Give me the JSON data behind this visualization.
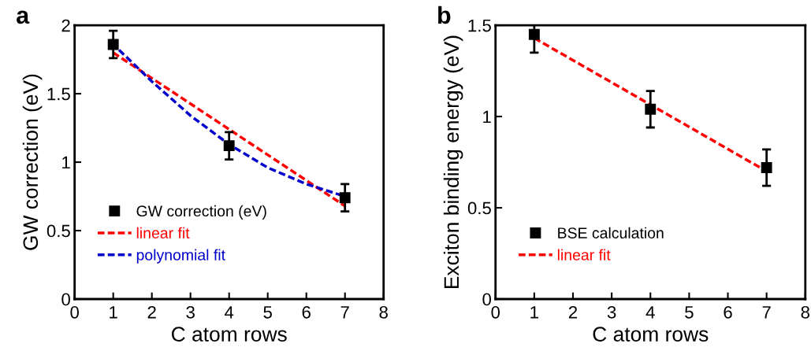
{
  "chart_data": [
    {
      "type": "scatter",
      "annotations": [
        "a"
      ],
      "xlabel": "C atom rows",
      "ylabel": "GW correction (eV)",
      "xlim": [
        0,
        8
      ],
      "ylim": [
        0,
        2
      ],
      "xticks": [
        0,
        1,
        2,
        3,
        4,
        5,
        6,
        7,
        8
      ],
      "yticks": [
        0,
        0.5,
        1,
        1.5,
        2
      ],
      "legend": "bottom left",
      "grid": false,
      "series": [
        {
          "name": "GW correction (eV)",
          "marker": "square",
          "color": "#000000",
          "x": [
            1,
            4,
            7
          ],
          "values": [
            1.86,
            1.12,
            0.74
          ],
          "errors": [
            0.1,
            0.1,
            0.1
          ]
        },
        {
          "name": "linear fit",
          "type": "line",
          "line_style": "dashed",
          "marker": "none",
          "color": "#ff0000",
          "x": [
            1,
            7
          ],
          "values": [
            1.8,
            0.68
          ]
        },
        {
          "name": "polynomial fit",
          "type": "line",
          "line_style": "dashed",
          "marker": "none",
          "color": "#0000cc",
          "x": [
            1.15,
            2,
            3,
            4,
            5,
            6,
            7
          ],
          "values": [
            1.82,
            1.59,
            1.34,
            1.13,
            0.96,
            0.84,
            0.75
          ]
        }
      ]
    },
    {
      "type": "scatter",
      "annotations": [
        "b"
      ],
      "xlabel": "C atom rows",
      "ylabel": "Exciton binding energy (eV)",
      "xlim": [
        0,
        8
      ],
      "ylim": [
        0,
        1.5
      ],
      "xticks": [
        0,
        1,
        2,
        3,
        4,
        5,
        6,
        7,
        8
      ],
      "yticks": [
        0,
        0.5,
        1,
        1.5
      ],
      "legend": "bottom left",
      "grid": false,
      "series": [
        {
          "name": "BSE calculation",
          "marker": "square",
          "color": "#000000",
          "x": [
            1,
            4,
            7
          ],
          "values": [
            1.45,
            1.04,
            0.72
          ],
          "errors": [
            0.1,
            0.1,
            0.1
          ]
        },
        {
          "name": "linear fit",
          "type": "line",
          "line_style": "dashed",
          "marker": "none",
          "color": "#ff0000",
          "x": [
            1,
            7
          ],
          "values": [
            1.43,
            0.7
          ]
        }
      ]
    }
  ]
}
